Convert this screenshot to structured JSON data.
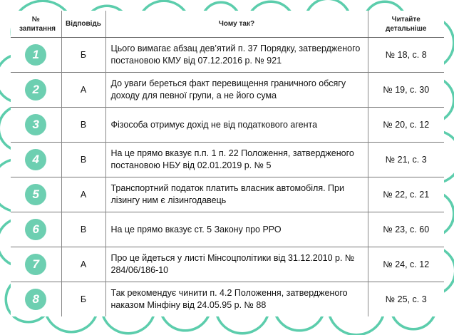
{
  "colors": {
    "accent": "#6dcfb1",
    "border": "#5ccdac"
  },
  "headers": {
    "num": "№ запитання",
    "answer": "Відповідь",
    "why": "Чому так?",
    "read": "Читайте детальніше"
  },
  "rows": [
    {
      "num": "1",
      "answer": "Б",
      "why": "Цього вимагає абзац дев’ятий п. 37 Порядку, затвердженого постановою КМУ від 07.12.2016 р. № 921",
      "read": "№ 18, с. 8"
    },
    {
      "num": "2",
      "answer": "А",
      "why": "До уваги береться факт перевищення граничного обсягу доходу для певної групи, а не його сума",
      "read": "№ 19, с. 30"
    },
    {
      "num": "3",
      "answer": "В",
      "why": "Фізособа отримує дохід не від податкового агента",
      "read": "№ 20, с. 12"
    },
    {
      "num": "4",
      "answer": "В",
      "why": "На це прямо вказує п.п. 1 п. 22 Положення, затвердженого постановою НБУ від 02.01.2019 р. № 5",
      "read": "№ 21, с. 3"
    },
    {
      "num": "5",
      "answer": "А",
      "why": "Транспортний податок платить власник автомобіля. При лізингу ним є лізингодавець",
      "read": "№ 22, с. 21"
    },
    {
      "num": "6",
      "answer": "В",
      "why": "На це прямо вказує ст. 5 Закону про РРО",
      "read": "№ 23, с. 60"
    },
    {
      "num": "7",
      "answer": "А",
      "why": "Про це йдеться у листі Мінсоцполітики від 31.12.2010 р. № 284/06/186-10",
      "read": "№ 24, с. 12"
    },
    {
      "num": "8",
      "answer": "Б",
      "why": "Так рекомендує чинити п. 4.2 Положення, затвердженого наказом Мінфіну від 24.05.95 р. № 88",
      "read": "№ 25, с. 3"
    }
  ]
}
